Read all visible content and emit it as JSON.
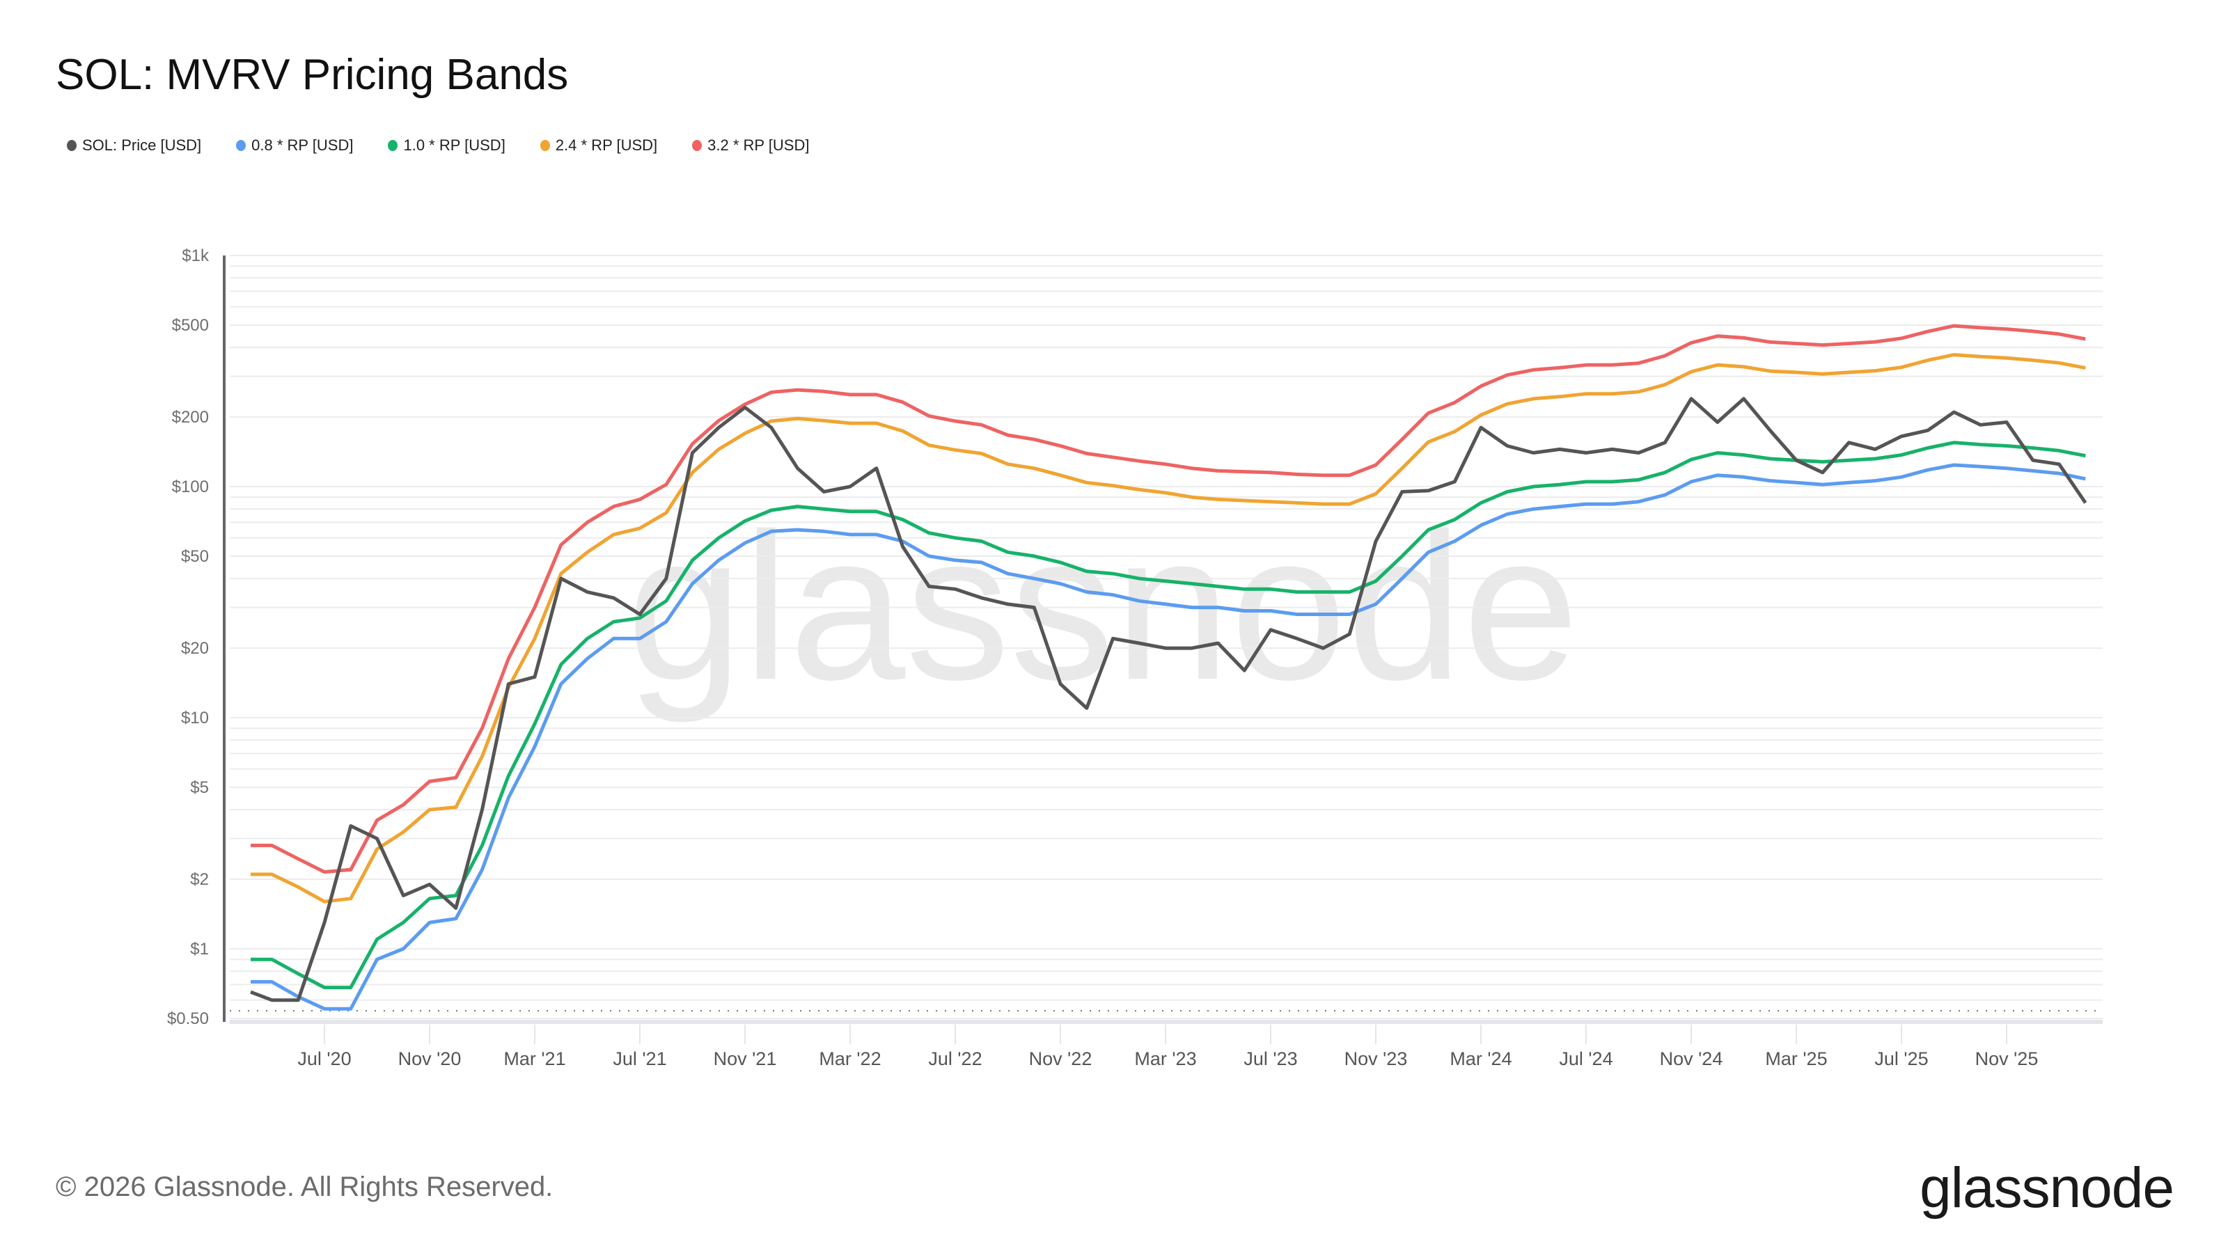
{
  "header": {
    "title": "SOL: MVRV Pricing Bands"
  },
  "legend": [
    {
      "label": "SOL: Price [USD]",
      "color": "#555555"
    },
    {
      "label": "0.8 * RP [USD]",
      "color": "#5b9cf0"
    },
    {
      "label": "1.0 * RP [USD]",
      "color": "#17b26a"
    },
    {
      "label": "2.4 * RP [USD]",
      "color": "#f0a432"
    },
    {
      "label": "3.2 * RP [USD]",
      "color": "#ee6363"
    }
  ],
  "footer": {
    "copyright": "© 2026 Glassnode. All Rights Reserved.",
    "logo": "glassnode"
  },
  "watermark": "glassnode",
  "chart_data": {
    "type": "line",
    "title": "SOL: MVRV Pricing Bands",
    "xlabel": "",
    "ylabel": "",
    "yscale": "log",
    "ylim": [
      0.5,
      1000
    ],
    "yticks": [
      {
        "value": 1000,
        "label": "$1k"
      },
      {
        "value": 500,
        "label": "$500"
      },
      {
        "value": 200,
        "label": "$200"
      },
      {
        "value": 100,
        "label": "$100"
      },
      {
        "value": 50,
        "label": "$50"
      },
      {
        "value": 20,
        "label": "$20"
      },
      {
        "value": 10,
        "label": "$10"
      },
      {
        "value": 5,
        "label": "$5"
      },
      {
        "value": 2,
        "label": "$2"
      },
      {
        "value": 1,
        "label": "$1"
      },
      {
        "value": 0.5,
        "label": "$0.50"
      }
    ],
    "xticks": [
      "Jul '20",
      "Nov '20",
      "Mar '21",
      "Jul '21",
      "Nov '21",
      "Mar '22",
      "Jul '22",
      "Nov '22",
      "Mar '23",
      "Jul '23",
      "Nov '23",
      "Mar '24",
      "Jul '24",
      "Nov '24",
      "Mar '25",
      "Jul '25",
      "Nov '25"
    ],
    "grid": true,
    "legend_position": "top-left",
    "x": [
      "2020-04",
      "2020-05",
      "2020-06",
      "2020-07",
      "2020-08",
      "2020-09",
      "2020-10",
      "2020-11",
      "2020-12",
      "2021-01",
      "2021-02",
      "2021-03",
      "2021-04",
      "2021-05",
      "2021-06",
      "2021-07",
      "2021-08",
      "2021-09",
      "2021-10",
      "2021-11",
      "2021-12",
      "2022-01",
      "2022-02",
      "2022-03",
      "2022-04",
      "2022-05",
      "2022-06",
      "2022-07",
      "2022-08",
      "2022-09",
      "2022-10",
      "2022-11",
      "2022-12",
      "2023-01",
      "2023-02",
      "2023-03",
      "2023-04",
      "2023-05",
      "2023-06",
      "2023-07",
      "2023-08",
      "2023-09",
      "2023-10",
      "2023-11",
      "2023-12",
      "2024-01",
      "2024-02",
      "2024-03",
      "2024-04",
      "2024-05",
      "2024-06",
      "2024-07",
      "2024-08",
      "2024-09",
      "2024-10",
      "2024-11",
      "2024-12",
      "2025-01",
      "2025-02",
      "2025-03",
      "2025-04",
      "2025-05",
      "2025-06",
      "2025-07",
      "2025-08",
      "2025-09",
      "2025-10",
      "2025-11",
      "2025-12",
      "2026-01",
      "2026-02"
    ],
    "series": [
      {
        "name": "SOL: Price [USD]",
        "color": "#555555",
        "values": [
          0.65,
          0.6,
          0.6,
          1.3,
          3.4,
          3.0,
          1.7,
          1.9,
          1.5,
          4.0,
          14,
          15,
          40,
          35,
          33,
          28,
          40,
          140,
          180,
          220,
          180,
          120,
          95,
          100,
          120,
          55,
          37,
          36,
          33,
          31,
          30,
          14,
          11,
          22,
          21,
          20,
          20,
          21,
          16,
          24,
          22,
          20,
          23,
          58,
          95,
          96,
          105,
          180,
          150,
          140,
          145,
          140,
          145,
          140,
          155,
          240,
          190,
          240,
          175,
          130,
          115,
          155,
          145,
          165,
          175,
          210,
          185,
          190,
          130,
          125,
          85
        ]
      },
      {
        "name": "0.8 * RP [USD]",
        "color": "#5b9cf0",
        "values": [
          0.72,
          0.72,
          0.62,
          0.55,
          0.55,
          0.9,
          1.0,
          1.3,
          1.35,
          2.2,
          4.5,
          7.5,
          14,
          18,
          22,
          22,
          26,
          38,
          48,
          57,
          64,
          65,
          64,
          62,
          62,
          58,
          50,
          48,
          47,
          42,
          40,
          38,
          35,
          34,
          32,
          31,
          30,
          30,
          29,
          29,
          28,
          28,
          28,
          31,
          40,
          52,
          58,
          68,
          76,
          80,
          82,
          84,
          84,
          86,
          92,
          105,
          112,
          110,
          106,
          104,
          102,
          104,
          106,
          110,
          118,
          124,
          122,
          120,
          117,
          114,
          108
        ]
      },
      {
        "name": "1.0 * RP [USD]",
        "color": "#17b26a",
        "values": [
          0.9,
          0.9,
          0.78,
          0.68,
          0.68,
          1.1,
          1.3,
          1.65,
          1.7,
          2.8,
          5.6,
          9.4,
          17,
          22,
          26,
          27,
          32,
          48,
          60,
          71,
          79,
          82,
          80,
          78,
          78,
          72,
          63,
          60,
          58,
          52,
          50,
          47,
          43,
          42,
          40,
          39,
          38,
          37,
          36,
          36,
          35,
          35,
          35,
          39,
          50,
          65,
          72,
          85,
          95,
          100,
          102,
          105,
          105,
          107,
          115,
          131,
          140,
          137,
          132,
          130,
          128,
          130,
          132,
          137,
          147,
          155,
          152,
          150,
          147,
          143,
          136
        ]
      },
      {
        "name": "2.4 * RP [USD]",
        "color": "#f0a432",
        "values": [
          2.1,
          2.1,
          1.85,
          1.6,
          1.65,
          2.7,
          3.2,
          4.0,
          4.1,
          6.8,
          13.5,
          22,
          42,
          52,
          62,
          66,
          77,
          115,
          145,
          170,
          192,
          197,
          193,
          188,
          188,
          174,
          151,
          144,
          139,
          125,
          120,
          112,
          104,
          101,
          97,
          94,
          90,
          88,
          87,
          86,
          85,
          84,
          84,
          93,
          120,
          156,
          173,
          204,
          228,
          240,
          245,
          252,
          252,
          257,
          276,
          314,
          336,
          330,
          316,
          312,
          307,
          312,
          317,
          328,
          352,
          372,
          365,
          360,
          352,
          343,
          326
        ]
      },
      {
        "name": "3.2 * RP [USD]",
        "color": "#ee6363",
        "values": [
          2.8,
          2.8,
          2.45,
          2.15,
          2.2,
          3.6,
          4.2,
          5.3,
          5.5,
          9.0,
          18,
          30,
          56,
          70,
          82,
          88,
          102,
          153,
          193,
          227,
          256,
          262,
          258,
          250,
          250,
          232,
          202,
          192,
          185,
          167,
          160,
          150,
          139,
          134,
          129,
          125,
          120,
          117,
          116,
          115,
          113,
          112,
          112,
          124,
          160,
          208,
          231,
          272,
          304,
          320,
          327,
          336,
          336,
          342,
          368,
          419,
          448,
          440,
          422,
          416,
          410,
          416,
          423,
          438,
          469,
          496,
          487,
          480,
          470,
          457,
          435
        ]
      }
    ]
  }
}
